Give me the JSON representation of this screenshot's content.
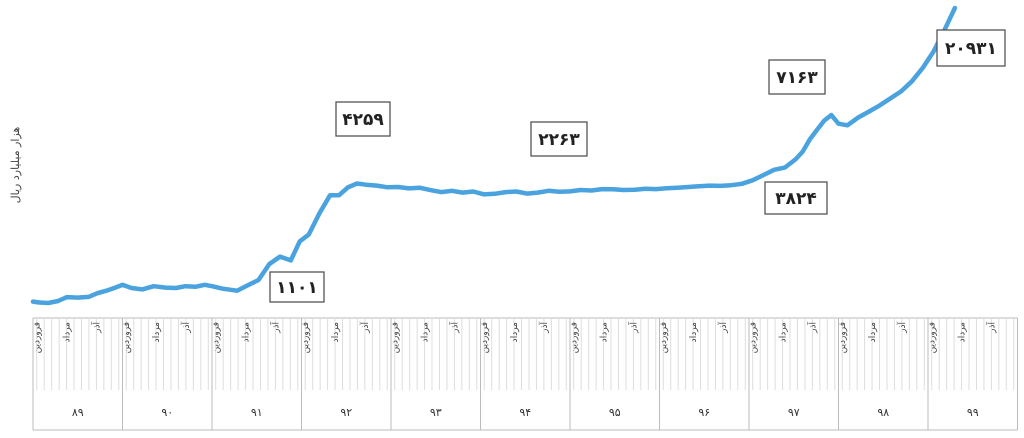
{
  "chart_data": {
    "type": "line",
    "ylabel": "هزار میلیارد ریال",
    "line_color": "#4aa3df",
    "month_labels": [
      "فروردین",
      "مرداد",
      "آذر"
    ],
    "years": [
      "۸۹",
      "۹۰",
      "۹۱",
      "۹۲",
      "۹۳",
      "۹۴",
      "۹۵",
      "۹۶",
      "۹۷",
      "۹۸",
      "۹۹"
    ],
    "x_start_year_index": 0,
    "series": [
      {
        "values": [
          [
            0.0,
            280
          ],
          [
            0.07,
            240
          ],
          [
            0.17,
            220
          ],
          [
            0.28,
            310
          ],
          [
            0.38,
            480
          ],
          [
            0.5,
            460
          ],
          [
            0.62,
            490
          ],
          [
            0.72,
            650
          ],
          [
            0.82,
            760
          ],
          [
            0.92,
            900
          ],
          [
            1.0,
            1020
          ],
          [
            1.1,
            880
          ],
          [
            1.22,
            820
          ],
          [
            1.35,
            960
          ],
          [
            1.48,
            900
          ],
          [
            1.6,
            880
          ],
          [
            1.7,
            960
          ],
          [
            1.82,
            940
          ],
          [
            1.92,
            1020
          ],
          [
            2.0,
            960
          ],
          [
            2.12,
            850
          ],
          [
            2.28,
            760
          ],
          [
            2.4,
            1000
          ],
          [
            2.52,
            1140
          ],
          [
            2.64,
            1350
          ],
          [
            2.76,
            1450
          ],
          [
            2.88,
            1400
          ],
          [
            2.98,
            1650
          ],
          [
            3.08,
            1740
          ],
          [
            3.2,
            2020
          ],
          [
            3.32,
            2260
          ],
          [
            3.42,
            2260
          ],
          [
            3.52,
            2700
          ],
          [
            3.62,
            2920
          ],
          [
            3.72,
            2850
          ],
          [
            3.84,
            2800
          ],
          [
            3.96,
            2700
          ],
          [
            4.08,
            2720
          ],
          [
            4.2,
            2640
          ],
          [
            4.32,
            2680
          ],
          [
            4.44,
            2540
          ],
          [
            4.56,
            2430
          ],
          [
            4.68,
            2500
          ],
          [
            4.8,
            2400
          ],
          [
            4.92,
            2460
          ],
          [
            5.04,
            2300
          ],
          [
            5.16,
            2330
          ],
          [
            5.28,
            2430
          ],
          [
            5.4,
            2460
          ],
          [
            5.52,
            2340
          ],
          [
            5.64,
            2400
          ],
          [
            5.76,
            2500
          ],
          [
            5.88,
            2450
          ],
          [
            6.0,
            2470
          ],
          [
            6.12,
            2550
          ],
          [
            6.24,
            2520
          ],
          [
            6.36,
            2600
          ],
          [
            6.48,
            2590
          ],
          [
            6.6,
            2550
          ],
          [
            6.72,
            2560
          ],
          [
            6.84,
            2620
          ],
          [
            6.96,
            2600
          ],
          [
            7.08,
            2650
          ],
          [
            7.2,
            2680
          ],
          [
            7.32,
            2720
          ],
          [
            7.44,
            2760
          ],
          [
            7.56,
            2800
          ],
          [
            7.68,
            2780
          ],
          [
            7.8,
            2820
          ],
          [
            7.92,
            2900
          ],
          [
            8.04,
            3100
          ],
          [
            8.16,
            3400
          ],
          [
            8.28,
            3700
          ],
          [
            8.4,
            3824
          ],
          [
            8.52,
            4300
          ],
          [
            8.6,
            4800
          ],
          [
            8.68,
            5600
          ],
          [
            8.76,
            6200
          ],
          [
            8.84,
            6800
          ],
          [
            8.92,
            7163
          ],
          [
            9.0,
            6600
          ],
          [
            9.1,
            6500
          ],
          [
            9.22,
            7000
          ],
          [
            9.34,
            7600
          ],
          [
            9.46,
            8400
          ],
          [
            9.58,
            9300
          ],
          [
            9.7,
            10200
          ],
          [
            9.82,
            11500
          ],
          [
            9.94,
            13200
          ],
          [
            10.06,
            15300
          ],
          [
            10.18,
            18000
          ],
          [
            10.3,
            20931
          ]
        ]
      }
    ],
    "annotations": [
      {
        "label": "۱۱۰۱"
      },
      {
        "label": "۴۲۵۹"
      },
      {
        "label": "۲۲۶۳"
      },
      {
        "label": "۳۸۲۴"
      },
      {
        "label": "۷۱۶۳"
      },
      {
        "label": "۲۰۹۳۱"
      }
    ]
  }
}
